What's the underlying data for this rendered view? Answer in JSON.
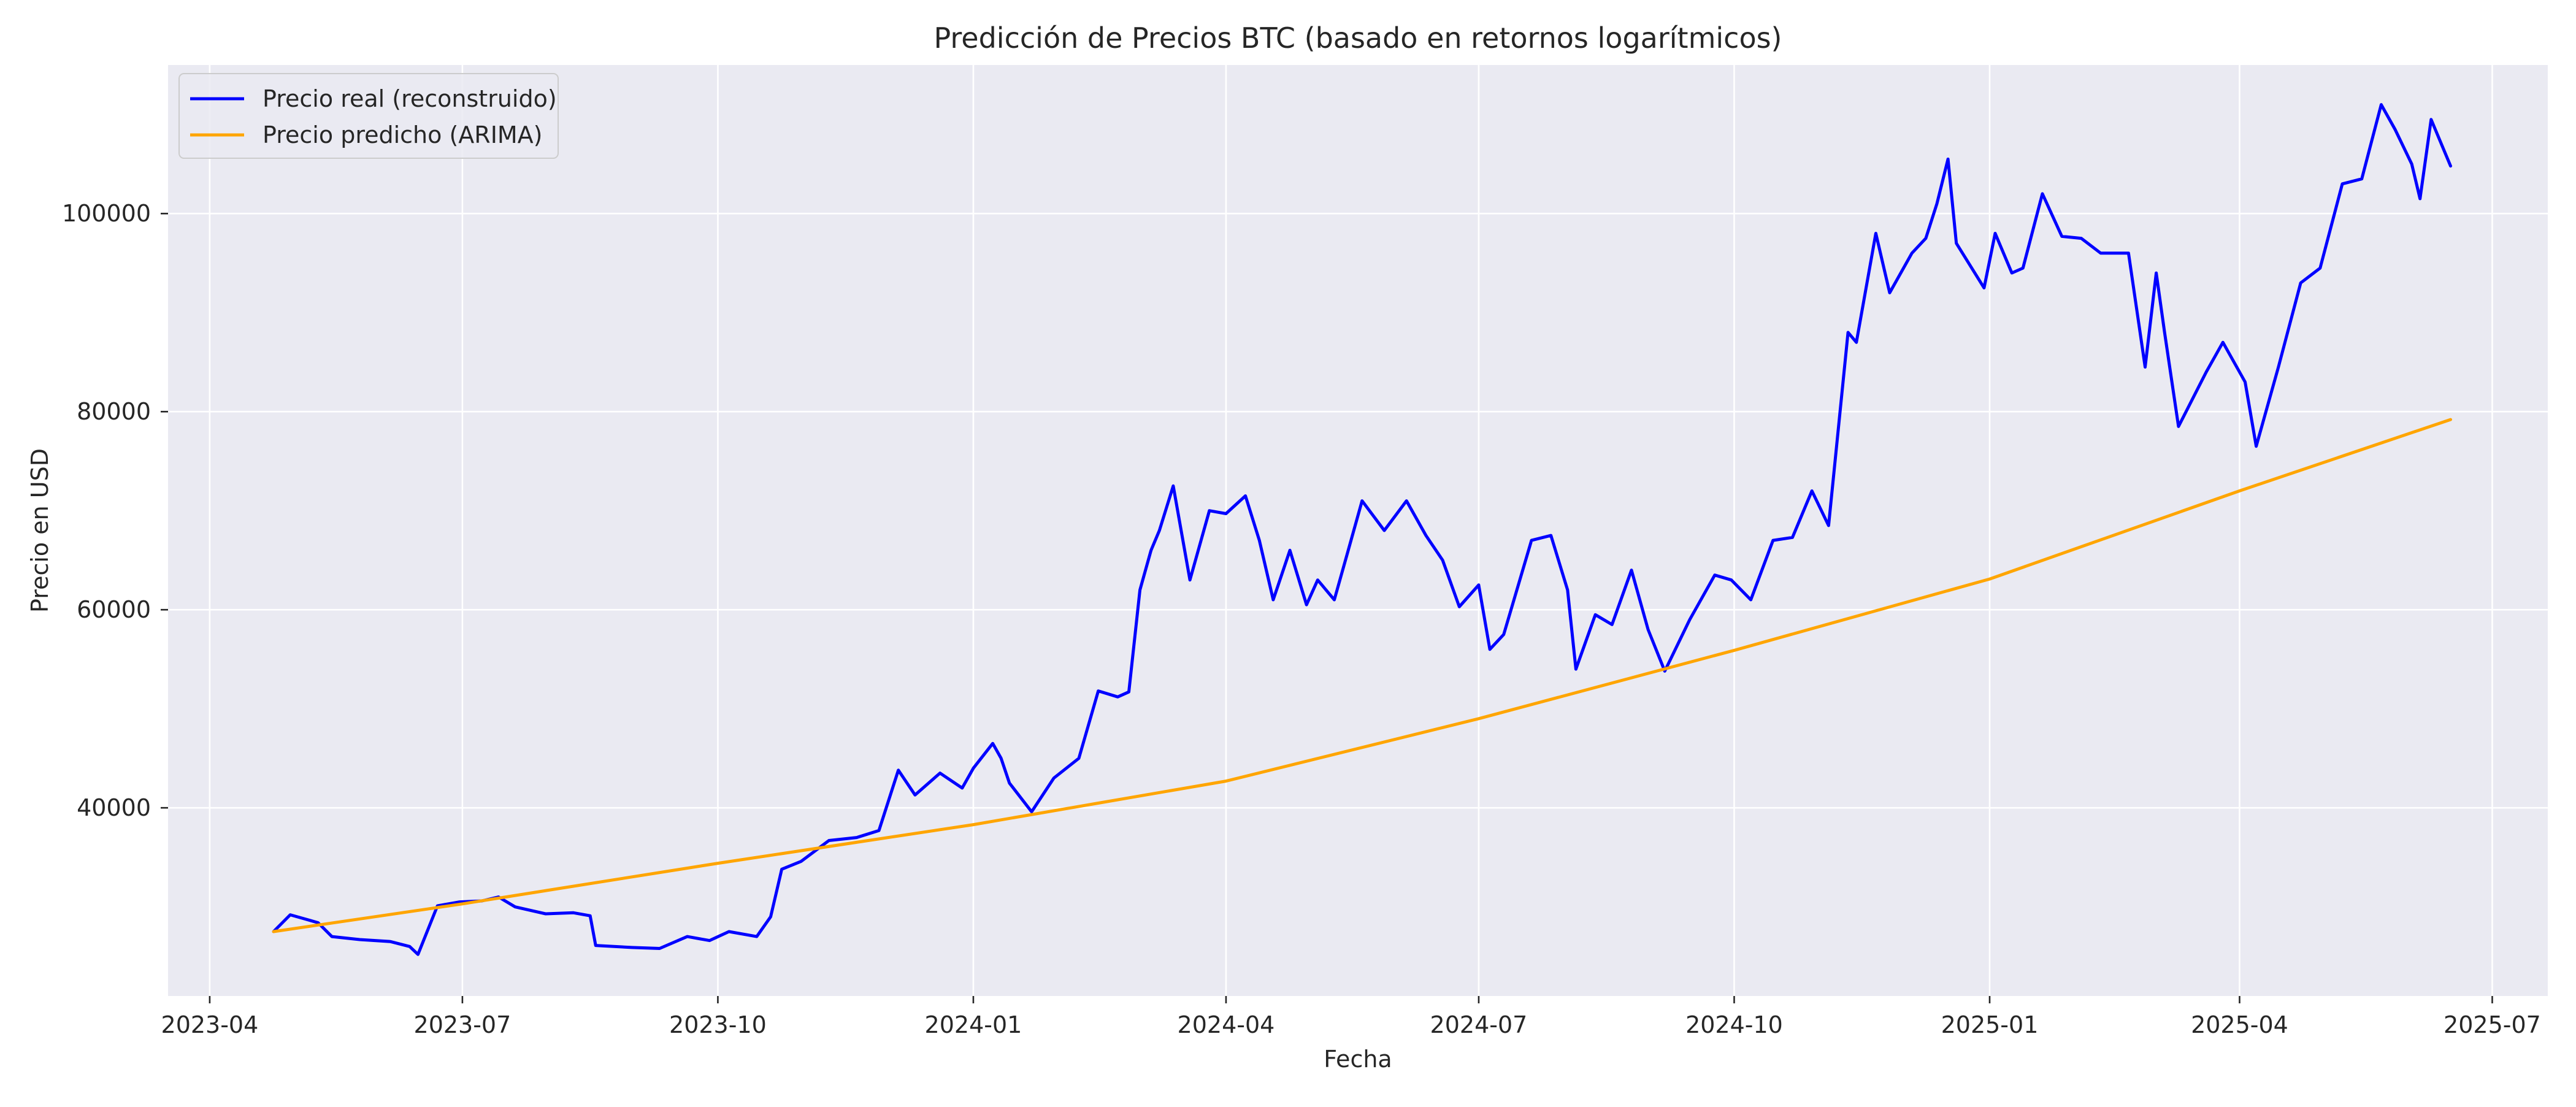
{
  "chart_data": {
    "type": "line",
    "title": "Predicción de Precios BTC (basado en retornos logarítmicos)",
    "xlabel": "Fecha",
    "ylabel": "Precio en USD",
    "x_range": [
      "2023-03-17",
      "2025-07-21"
    ],
    "ylim": [
      21000,
      115000
    ],
    "x_ticks": [
      "2023-04-01",
      "2023-07-01",
      "2023-10-01",
      "2024-01-01",
      "2024-04-01",
      "2024-07-01",
      "2024-10-01",
      "2025-01-01",
      "2025-04-01",
      "2025-07-01"
    ],
    "x_tick_labels": [
      "2023-04",
      "2023-07",
      "2023-10",
      "2024-01",
      "2024-04",
      "2024-07",
      "2024-10",
      "2025-01",
      "2025-04",
      "2025-07"
    ],
    "y_ticks": [
      40000,
      60000,
      80000,
      100000
    ],
    "y_tick_labels": [
      "40000",
      "60000",
      "80000",
      "100000"
    ],
    "grid": true,
    "background_color": "#eaeaf2",
    "legend_position": "top-left",
    "series": [
      {
        "name": "Precio real (reconstruido)",
        "color": "#0000ff",
        "points": [
          [
            "2023-04-24",
            27500
          ],
          [
            "2023-04-30",
            29200
          ],
          [
            "2023-05-05",
            28800
          ],
          [
            "2023-05-10",
            28400
          ],
          [
            "2023-05-15",
            27000
          ],
          [
            "2023-05-25",
            26700
          ],
          [
            "2023-06-05",
            26500
          ],
          [
            "2023-06-12",
            26000
          ],
          [
            "2023-06-15",
            25200
          ],
          [
            "2023-06-22",
            30100
          ],
          [
            "2023-06-30",
            30500
          ],
          [
            "2023-07-08",
            30600
          ],
          [
            "2023-07-14",
            31000
          ],
          [
            "2023-07-20",
            30000
          ],
          [
            "2023-07-31",
            29300
          ],
          [
            "2023-08-10",
            29400
          ],
          [
            "2023-08-16",
            29100
          ],
          [
            "2023-08-18",
            26100
          ],
          [
            "2023-08-31",
            25900
          ],
          [
            "2023-09-10",
            25800
          ],
          [
            "2023-09-20",
            27000
          ],
          [
            "2023-09-28",
            26600
          ],
          [
            "2023-10-05",
            27500
          ],
          [
            "2023-10-15",
            27000
          ],
          [
            "2023-10-20",
            29000
          ],
          [
            "2023-10-24",
            33800
          ],
          [
            "2023-10-31",
            34600
          ],
          [
            "2023-11-10",
            36700
          ],
          [
            "2023-11-20",
            37000
          ],
          [
            "2023-11-28",
            37700
          ],
          [
            "2023-12-05",
            43800
          ],
          [
            "2023-12-11",
            41300
          ],
          [
            "2023-12-20",
            43500
          ],
          [
            "2023-12-28",
            42000
          ],
          [
            "2024-01-01",
            44000
          ],
          [
            "2024-01-08",
            46500
          ],
          [
            "2024-01-11",
            45000
          ],
          [
            "2024-01-14",
            42500
          ],
          [
            "2024-01-22",
            39600
          ],
          [
            "2024-01-30",
            43000
          ],
          [
            "2024-02-08",
            45000
          ],
          [
            "2024-02-15",
            51800
          ],
          [
            "2024-02-22",
            51200
          ],
          [
            "2024-02-26",
            51700
          ],
          [
            "2024-03-01",
            62000
          ],
          [
            "2024-03-05",
            66000
          ],
          [
            "2024-03-08",
            68000
          ],
          [
            "2024-03-13",
            72500
          ],
          [
            "2024-03-19",
            63000
          ],
          [
            "2024-03-26",
            70000
          ],
          [
            "2024-04-01",
            69700
          ],
          [
            "2024-04-08",
            71500
          ],
          [
            "2024-04-13",
            67000
          ],
          [
            "2024-04-18",
            61000
          ],
          [
            "2024-04-24",
            66000
          ],
          [
            "2024-04-30",
            60500
          ],
          [
            "2024-05-04",
            63000
          ],
          [
            "2024-05-10",
            61000
          ],
          [
            "2024-05-15",
            66000
          ],
          [
            "2024-05-20",
            71000
          ],
          [
            "2024-05-28",
            68000
          ],
          [
            "2024-06-05",
            71000
          ],
          [
            "2024-06-12",
            67500
          ],
          [
            "2024-06-18",
            65000
          ],
          [
            "2024-06-24",
            60300
          ],
          [
            "2024-07-01",
            62500
          ],
          [
            "2024-07-05",
            56000
          ],
          [
            "2024-07-10",
            57500
          ],
          [
            "2024-07-20",
            67000
          ],
          [
            "2024-07-27",
            67500
          ],
          [
            "2024-08-02",
            62000
          ],
          [
            "2024-08-05",
            54000
          ],
          [
            "2024-08-12",
            59500
          ],
          [
            "2024-08-18",
            58500
          ],
          [
            "2024-08-25",
            64000
          ],
          [
            "2024-08-31",
            58000
          ],
          [
            "2024-09-06",
            53800
          ],
          [
            "2024-09-15",
            59000
          ],
          [
            "2024-09-24",
            63500
          ],
          [
            "2024-09-30",
            63000
          ],
          [
            "2024-10-07",
            61000
          ],
          [
            "2024-10-15",
            67000
          ],
          [
            "2024-10-22",
            67300
          ],
          [
            "2024-10-29",
            72000
          ],
          [
            "2024-11-04",
            68500
          ],
          [
            "2024-11-11",
            88000
          ],
          [
            "2024-11-14",
            87000
          ],
          [
            "2024-11-21",
            98000
          ],
          [
            "2024-11-26",
            92000
          ],
          [
            "2024-12-04",
            96000
          ],
          [
            "2024-12-09",
            97500
          ],
          [
            "2024-12-13",
            101000
          ],
          [
            "2024-12-17",
            105500
          ],
          [
            "2024-12-20",
            97000
          ],
          [
            "2024-12-30",
            92500
          ],
          [
            "2025-01-03",
            98000
          ],
          [
            "2025-01-09",
            94000
          ],
          [
            "2025-01-13",
            94500
          ],
          [
            "2025-01-20",
            102000
          ],
          [
            "2025-01-27",
            97700
          ],
          [
            "2025-02-03",
            97500
          ],
          [
            "2025-02-10",
            96000
          ],
          [
            "2025-02-20",
            96000
          ],
          [
            "2025-02-26",
            84500
          ],
          [
            "2025-03-02",
            94000
          ],
          [
            "2025-03-05",
            88000
          ],
          [
            "2025-03-10",
            78500
          ],
          [
            "2025-03-20",
            84000
          ],
          [
            "2025-03-26",
            87000
          ],
          [
            "2025-04-03",
            83000
          ],
          [
            "2025-04-07",
            76500
          ],
          [
            "2025-04-15",
            84500
          ],
          [
            "2025-04-23",
            93000
          ],
          [
            "2025-04-30",
            94500
          ],
          [
            "2025-05-08",
            103000
          ],
          [
            "2025-05-15",
            103500
          ],
          [
            "2025-05-22",
            111000
          ],
          [
            "2025-05-27",
            108500
          ],
          [
            "2025-06-02",
            105000
          ],
          [
            "2025-06-05",
            101500
          ],
          [
            "2025-06-09",
            109500
          ],
          [
            "2025-06-16",
            104800
          ]
        ]
      },
      {
        "name": "Precio predicho (ARIMA)",
        "color": "#ffa500",
        "points": [
          [
            "2023-04-24",
            27500
          ],
          [
            "2023-07-01",
            30300
          ],
          [
            "2023-10-01",
            34400
          ],
          [
            "2024-01-01",
            38300
          ],
          [
            "2024-04-01",
            42700
          ],
          [
            "2024-07-01",
            49000
          ],
          [
            "2024-10-01",
            55900
          ],
          [
            "2025-01-01",
            63100
          ],
          [
            "2025-04-01",
            72000
          ],
          [
            "2025-06-16",
            79200
          ]
        ]
      }
    ]
  }
}
